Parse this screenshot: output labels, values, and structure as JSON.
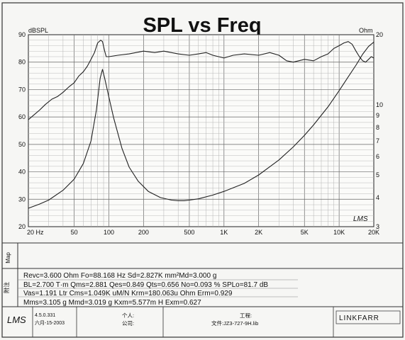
{
  "chart_data": {
    "type": "line",
    "title": "SPL vs Freq",
    "left_axis": {
      "unit": "dBSPL",
      "range": [
        20,
        90
      ],
      "ticks": [
        20,
        30,
        40,
        50,
        60,
        70,
        80,
        90
      ]
    },
    "right_axis": {
      "unit": "Ohm",
      "scale": "log",
      "range": [
        3,
        20
      ],
      "ticks": [
        {
          "v": 20,
          "label": "20"
        },
        {
          "v": 10,
          "label": "10"
        },
        {
          "v": 9,
          "label": "9"
        },
        {
          "v": 8,
          "label": "8"
        },
        {
          "v": 7,
          "label": "7"
        },
        {
          "v": 6,
          "label": "6"
        },
        {
          "v": 5,
          "label": "5"
        },
        {
          "v": 4,
          "label": "4"
        },
        {
          "v": 3,
          "label": "3"
        }
      ]
    },
    "x_axis": {
      "scale": "log",
      "range": [
        20,
        20000
      ],
      "ticks": [
        {
          "v": 20,
          "label": "20 Hz"
        },
        {
          "v": 50,
          "label": "50"
        },
        {
          "v": 100,
          "label": "100"
        },
        {
          "v": 200,
          "label": "200"
        },
        {
          "v": 500,
          "label": "500"
        },
        {
          "v": 1000,
          "label": "1K"
        },
        {
          "v": 2000,
          "label": "2K"
        },
        {
          "v": 5000,
          "label": "5K"
        },
        {
          "v": 10000,
          "label": "10K"
        },
        {
          "v": 20000,
          "label": "20K"
        }
      ]
    },
    "grid": true,
    "series": [
      {
        "axis": "left",
        "color": "#222222",
        "points": [
          [
            20,
            59
          ],
          [
            22,
            60.5
          ],
          [
            25,
            62.5
          ],
          [
            28,
            64.5
          ],
          [
            32,
            66.5
          ],
          [
            36,
            67.5
          ],
          [
            40,
            69
          ],
          [
            45,
            71
          ],
          [
            50,
            72.5
          ],
          [
            55,
            75
          ],
          [
            60,
            76.5
          ],
          [
            65,
            78.5
          ],
          [
            70,
            81
          ],
          [
            75,
            83.5
          ],
          [
            80,
            87
          ],
          [
            85,
            88
          ],
          [
            88,
            87.5
          ],
          [
            92,
            84
          ],
          [
            95,
            82
          ],
          [
            100,
            82
          ],
          [
            120,
            82.5
          ],
          [
            150,
            83
          ],
          [
            200,
            84
          ],
          [
            250,
            83.5
          ],
          [
            300,
            84
          ],
          [
            400,
            83
          ],
          [
            500,
            82.5
          ],
          [
            600,
            83
          ],
          [
            700,
            83.5
          ],
          [
            800,
            82.5
          ],
          [
            1000,
            81.5
          ],
          [
            1200,
            82.5
          ],
          [
            1500,
            83
          ],
          [
            2000,
            82.5
          ],
          [
            2500,
            83.5
          ],
          [
            3000,
            82.5
          ],
          [
            3500,
            80.5
          ],
          [
            4000,
            80
          ],
          [
            5000,
            81
          ],
          [
            6000,
            80.5
          ],
          [
            7000,
            82
          ],
          [
            8000,
            83
          ],
          [
            9000,
            85
          ],
          [
            10000,
            86
          ],
          [
            11000,
            87
          ],
          [
            12000,
            87.5
          ],
          [
            13000,
            86.5
          ],
          [
            14000,
            84
          ],
          [
            15000,
            82
          ],
          [
            16000,
            80.5
          ],
          [
            17000,
            80
          ],
          [
            18000,
            81
          ],
          [
            19000,
            82
          ],
          [
            20000,
            81.5
          ]
        ]
      },
      {
        "axis": "right",
        "color": "#222222",
        "points": [
          [
            20,
            3.6
          ],
          [
            25,
            3.75
          ],
          [
            30,
            3.9
          ],
          [
            40,
            4.3
          ],
          [
            50,
            4.8
          ],
          [
            60,
            5.6
          ],
          [
            70,
            7.0
          ],
          [
            78,
            9.5
          ],
          [
            84,
            13
          ],
          [
            88,
            14.2
          ],
          [
            92,
            13
          ],
          [
            100,
            10.8
          ],
          [
            110,
            8.8
          ],
          [
            130,
            6.5
          ],
          [
            150,
            5.4
          ],
          [
            180,
            4.7
          ],
          [
            220,
            4.25
          ],
          [
            280,
            4.0
          ],
          [
            350,
            3.9
          ],
          [
            400,
            3.88
          ],
          [
            450,
            3.88
          ],
          [
            500,
            3.9
          ],
          [
            600,
            3.95
          ],
          [
            800,
            4.1
          ],
          [
            1000,
            4.25
          ],
          [
            1500,
            4.6
          ],
          [
            2000,
            5.0
          ],
          [
            3000,
            5.8
          ],
          [
            4000,
            6.6
          ],
          [
            5000,
            7.4
          ],
          [
            6000,
            8.2
          ],
          [
            8000,
            9.8
          ],
          [
            10000,
            11.5
          ],
          [
            12000,
            13.2
          ],
          [
            14000,
            14.8
          ],
          [
            16000,
            16.5
          ],
          [
            18000,
            17.8
          ],
          [
            20000,
            18.6
          ]
        ]
      }
    ]
  },
  "params": {
    "line1": "Revc=3.600 Ohm  Fo=88.168 Hz  Sd=2.827K mm²Md=3.000 g",
    "line2": "BL=2.700 T·m  Qms=2.881  Qes=0.849  Qts=0.656  No=0.093 %  SPLo=81.7 dB",
    "line3": "Vas=1.191 Ltr  Cms=1.049K uM/N  Krm=180.063u Ohm  Erm=0.929",
    "line4": "Mms=3.105 g  Mmd=3.019 g  Kxm=5.577m H  Exm=0.627"
  },
  "side_labels": {
    "map": "Map",
    "notes": "附注"
  },
  "footer": {
    "brand": "LMS",
    "version": "4.5.0.331",
    "date": "六月-15-2003",
    "person_label": "个人:",
    "company_label": "公司:",
    "project_label": "工程:",
    "file_label": "文件:JZ3-727-9H.lib",
    "logo": "LINKFARR"
  },
  "chart_brand": "LMS"
}
